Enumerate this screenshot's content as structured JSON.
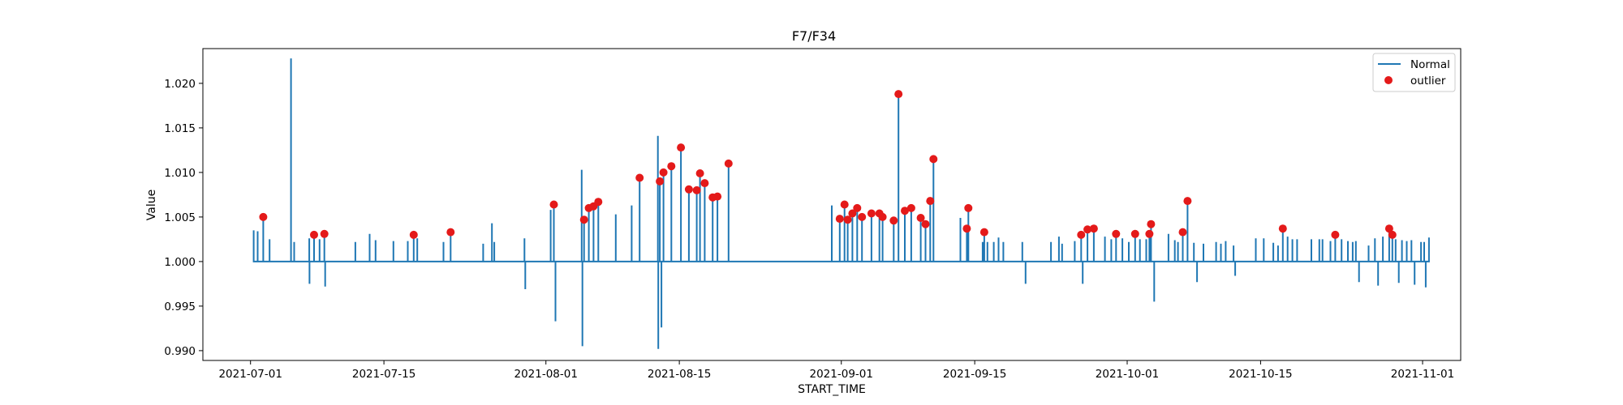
{
  "chart_data": {
    "type": "line",
    "title": "F7/F34",
    "xlabel": "START_TIME",
    "ylabel": "Value",
    "xlim": [
      "2021-06-26",
      "2021-11-05"
    ],
    "ylim": [
      0.9889,
      1.0239
    ],
    "x_ticks": [
      "2021-07-01",
      "2021-07-15",
      "2021-08-01",
      "2021-08-15",
      "2021-09-01",
      "2021-09-15",
      "2021-10-01",
      "2021-10-15",
      "2021-11-01"
    ],
    "y_ticks": [
      "0.990",
      "0.995",
      "1.000",
      "1.005",
      "1.010",
      "1.015",
      "1.020"
    ],
    "grid": false,
    "legend_position": "top-right",
    "series": [
      {
        "name": "Normal",
        "type": "line",
        "color": "#1f77b4",
        "baseline": 1.0,
        "spikes": [
          [
            "2021-07-01T08:00",
            1.0035
          ],
          [
            "2021-07-01T18:00",
            1.0034
          ],
          [
            "2021-07-02T08:00",
            1.005
          ],
          [
            "2021-07-03T00:00",
            1.0025
          ],
          [
            "2021-07-05T06:00",
            1.0228
          ],
          [
            "2021-07-05T14:00",
            1.0022
          ],
          [
            "2021-07-07T04:00",
            1.0026
          ],
          [
            "2021-07-07T04:30",
            0.9975
          ],
          [
            "2021-07-07T16:00",
            1.003
          ],
          [
            "2021-07-08T06:00",
            1.0025
          ],
          [
            "2021-07-08T18:00",
            1.0031
          ],
          [
            "2021-07-08T20:00",
            0.9972
          ],
          [
            "2021-07-12T00:00",
            1.0022
          ],
          [
            "2021-07-13T12:00",
            1.0031
          ],
          [
            "2021-07-14T03:00",
            1.0024
          ],
          [
            "2021-07-16T00:00",
            1.0023
          ],
          [
            "2021-07-17T12:00",
            1.0023
          ],
          [
            "2021-07-18T03:00",
            1.003
          ],
          [
            "2021-07-18T12:00",
            1.0026
          ],
          [
            "2021-07-21T06:00",
            1.0022
          ],
          [
            "2021-07-22T00:00",
            1.0033
          ],
          [
            "2021-07-25T10:00",
            1.002
          ],
          [
            "2021-07-26T08:00",
            1.0043
          ],
          [
            "2021-07-26T14:00",
            1.0022
          ],
          [
            "2021-07-29T18:00",
            1.0026
          ],
          [
            "2021-07-29T20:00",
            0.9969
          ],
          [
            "2021-08-01T12:00",
            1.0058
          ],
          [
            "2021-08-01T20:00",
            1.0064
          ],
          [
            "2021-08-02T00:00",
            0.9933
          ],
          [
            "2021-08-04T18:00",
            1.0103
          ],
          [
            "2021-08-04T20:00",
            0.9905
          ],
          [
            "2021-08-05T00:00",
            1.0047
          ],
          [
            "2021-08-05T12:00",
            1.006
          ],
          [
            "2021-08-06T00:00",
            1.0062
          ],
          [
            "2021-08-06T12:00",
            1.0067
          ],
          [
            "2021-08-08T08:00",
            1.0053
          ],
          [
            "2021-08-10T00:00",
            1.0063
          ],
          [
            "2021-08-10T20:00",
            1.0094
          ],
          [
            "2021-08-12T18:00",
            1.0141
          ],
          [
            "2021-08-12T19:00",
            0.9902
          ],
          [
            "2021-08-12T23:00",
            1.009
          ],
          [
            "2021-08-13T03:00",
            0.9926
          ],
          [
            "2021-08-13T08:00",
            1.01
          ],
          [
            "2021-08-14T04:00",
            1.0107
          ],
          [
            "2021-08-15T04:00",
            1.0128
          ],
          [
            "2021-08-16T00:00",
            1.0081
          ],
          [
            "2021-08-16T20:00",
            1.008
          ],
          [
            "2021-08-17T04:00",
            1.0099
          ],
          [
            "2021-08-17T16:00",
            1.0088
          ],
          [
            "2021-08-18T12:00",
            1.0072
          ],
          [
            "2021-08-19T00:00",
            1.0073
          ],
          [
            "2021-08-20T04:00",
            1.011
          ],
          [
            "2021-08-31T00:00",
            1.0063
          ],
          [
            "2021-08-31T20:00",
            1.0048
          ],
          [
            "2021-09-01T08:00",
            1.0064
          ],
          [
            "2021-09-01T16:00",
            1.0047
          ],
          [
            "2021-09-02T04:00",
            1.0054
          ],
          [
            "2021-09-02T16:00",
            1.006
          ],
          [
            "2021-09-03T04:00",
            1.005
          ],
          [
            "2021-09-04T04:00",
            1.0054
          ],
          [
            "2021-09-05T00:00",
            1.0054
          ],
          [
            "2021-09-05T08:00",
            1.005
          ],
          [
            "2021-09-06T12:00",
            1.0046
          ],
          [
            "2021-09-07T00:00",
            1.0188
          ],
          [
            "2021-09-07T16:00",
            1.0057
          ],
          [
            "2021-09-08T08:00",
            1.006
          ],
          [
            "2021-09-09T08:00",
            1.0049
          ],
          [
            "2021-09-09T20:00",
            1.0042
          ],
          [
            "2021-09-10T08:00",
            1.0068
          ],
          [
            "2021-09-10T16:00",
            1.0115
          ],
          [
            "2021-09-13T12:00",
            1.0049
          ],
          [
            "2021-09-14T04:00",
            1.0037
          ],
          [
            "2021-09-14T08:00",
            1.006
          ],
          [
            "2021-09-15T20:00",
            1.0022
          ],
          [
            "2021-09-16T00:00",
            1.0033
          ],
          [
            "2021-09-16T08:00",
            1.0022
          ],
          [
            "2021-09-17T00:00",
            1.0022
          ],
          [
            "2021-09-17T12:00",
            1.0027
          ],
          [
            "2021-09-18T00:00",
            1.0022
          ],
          [
            "2021-09-20T00:00",
            1.0022
          ],
          [
            "2021-09-20T08:00",
            0.9975
          ],
          [
            "2021-09-23T00:00",
            1.0022
          ],
          [
            "2021-09-23T20:00",
            1.0028
          ],
          [
            "2021-09-24T04:00",
            1.002
          ],
          [
            "2021-09-25T12:00",
            1.0023
          ],
          [
            "2021-09-26T04:00",
            1.003
          ],
          [
            "2021-09-26T08:00",
            0.9975
          ],
          [
            "2021-09-26T20:00",
            1.0036
          ],
          [
            "2021-09-27T12:00",
            1.0037
          ],
          [
            "2021-09-28T16:00",
            1.0028
          ],
          [
            "2021-09-29T08:00",
            1.0025
          ],
          [
            "2021-09-29T20:00",
            1.0031
          ],
          [
            "2021-09-30T12:00",
            1.0026
          ],
          [
            "2021-10-01T04:00",
            1.0022
          ],
          [
            "2021-10-01T20:00",
            1.0031
          ],
          [
            "2021-10-02T08:00",
            1.0025
          ],
          [
            "2021-10-03T00:00",
            1.0025
          ],
          [
            "2021-10-03T08:00",
            1.0031
          ],
          [
            "2021-10-03T12:00",
            1.0042
          ],
          [
            "2021-10-03T20:00",
            0.9955
          ],
          [
            "2021-10-05T08:00",
            1.0031
          ],
          [
            "2021-10-06T00:00",
            1.0024
          ],
          [
            "2021-10-06T08:00",
            1.0022
          ],
          [
            "2021-10-06T20:00",
            1.0033
          ],
          [
            "2021-10-07T08:00",
            1.0068
          ],
          [
            "2021-10-08T00:00",
            1.0021
          ],
          [
            "2021-10-08T08:00",
            0.9977
          ],
          [
            "2021-10-09T00:00",
            1.002
          ],
          [
            "2021-10-10T08:00",
            1.0022
          ],
          [
            "2021-10-10T20:00",
            1.002
          ],
          [
            "2021-10-11T08:00",
            1.0023
          ],
          [
            "2021-10-12T04:00",
            1.0018
          ],
          [
            "2021-10-12T08:00",
            0.9984
          ],
          [
            "2021-10-14T12:00",
            1.0026
          ],
          [
            "2021-10-15T08:00",
            1.0026
          ],
          [
            "2021-10-16T08:00",
            1.0021
          ],
          [
            "2021-10-16T20:00",
            1.0018
          ],
          [
            "2021-10-17T08:00",
            1.0037
          ],
          [
            "2021-10-17T20:00",
            1.0028
          ],
          [
            "2021-10-18T08:00",
            1.0025
          ],
          [
            "2021-10-18T20:00",
            1.0025
          ],
          [
            "2021-10-20T08:00",
            1.0025
          ],
          [
            "2021-10-21T04:00",
            1.0025
          ],
          [
            "2021-10-21T12:00",
            1.0025
          ],
          [
            "2021-10-22T08:00",
            1.0023
          ],
          [
            "2021-10-22T20:00",
            1.003
          ],
          [
            "2021-10-23T12:00",
            1.0025
          ],
          [
            "2021-10-24T04:00",
            1.0023
          ],
          [
            "2021-10-24T16:00",
            1.0022
          ],
          [
            "2021-10-25T00:00",
            1.0023
          ],
          [
            "2021-10-25T08:00",
            0.9977
          ],
          [
            "2021-10-26T08:00",
            1.0018
          ],
          [
            "2021-10-27T00:00",
            1.0026
          ],
          [
            "2021-10-27T08:00",
            0.9973
          ],
          [
            "2021-10-27T20:00",
            1.0028
          ],
          [
            "2021-10-28T12:00",
            1.0037
          ],
          [
            "2021-10-28T20:00",
            1.003
          ],
          [
            "2021-10-29T04:00",
            1.0025
          ],
          [
            "2021-10-29T12:00",
            0.9976
          ],
          [
            "2021-10-29T20:00",
            1.0024
          ],
          [
            "2021-10-30T08:00",
            1.0023
          ],
          [
            "2021-10-30T20:00",
            1.0024
          ],
          [
            "2021-10-31T04:00",
            0.9974
          ],
          [
            "2021-10-31T20:00",
            1.0022
          ],
          [
            "2021-11-01T04:00",
            1.0022
          ],
          [
            "2021-11-01T08:00",
            0.9971
          ],
          [
            "2021-11-01T16:00",
            1.0027
          ]
        ]
      },
      {
        "name": "outlier",
        "type": "scatter",
        "color": "#e41a1a",
        "points": [
          [
            "2021-07-02T08:00",
            1.005
          ],
          [
            "2021-07-07T16:00",
            1.003
          ],
          [
            "2021-07-08T18:00",
            1.0031
          ],
          [
            "2021-07-18T03:00",
            1.003
          ],
          [
            "2021-07-22T00:00",
            1.0033
          ],
          [
            "2021-08-01T20:00",
            1.0064
          ],
          [
            "2021-08-05T00:00",
            1.0047
          ],
          [
            "2021-08-05T12:00",
            1.006
          ],
          [
            "2021-08-06T00:00",
            1.0062
          ],
          [
            "2021-08-06T12:00",
            1.0067
          ],
          [
            "2021-08-10T20:00",
            1.0094
          ],
          [
            "2021-08-12T23:00",
            1.009
          ],
          [
            "2021-08-13T08:00",
            1.01
          ],
          [
            "2021-08-14T04:00",
            1.0107
          ],
          [
            "2021-08-15T04:00",
            1.0128
          ],
          [
            "2021-08-16T00:00",
            1.0081
          ],
          [
            "2021-08-16T20:00",
            1.008
          ],
          [
            "2021-08-17T04:00",
            1.0099
          ],
          [
            "2021-08-17T16:00",
            1.0088
          ],
          [
            "2021-08-18T12:00",
            1.0072
          ],
          [
            "2021-08-19T00:00",
            1.0073
          ],
          [
            "2021-08-20T04:00",
            1.011
          ],
          [
            "2021-08-31T20:00",
            1.0048
          ],
          [
            "2021-09-01T08:00",
            1.0064
          ],
          [
            "2021-09-01T16:00",
            1.0047
          ],
          [
            "2021-09-02T04:00",
            1.0054
          ],
          [
            "2021-09-02T16:00",
            1.006
          ],
          [
            "2021-09-03T04:00",
            1.005
          ],
          [
            "2021-09-04T04:00",
            1.0054
          ],
          [
            "2021-09-05T00:00",
            1.0054
          ],
          [
            "2021-09-05T08:00",
            1.005
          ],
          [
            "2021-09-06T12:00",
            1.0046
          ],
          [
            "2021-09-07T00:00",
            1.0188
          ],
          [
            "2021-09-07T16:00",
            1.0057
          ],
          [
            "2021-09-08T08:00",
            1.006
          ],
          [
            "2021-09-09T08:00",
            1.0049
          ],
          [
            "2021-09-09T20:00",
            1.0042
          ],
          [
            "2021-09-10T08:00",
            1.0068
          ],
          [
            "2021-09-10T16:00",
            1.0115
          ],
          [
            "2021-09-14T04:00",
            1.0037
          ],
          [
            "2021-09-14T08:00",
            1.006
          ],
          [
            "2021-09-16T00:00",
            1.0033
          ],
          [
            "2021-09-26T04:00",
            1.003
          ],
          [
            "2021-09-26T20:00",
            1.0036
          ],
          [
            "2021-09-27T12:00",
            1.0037
          ],
          [
            "2021-09-29T20:00",
            1.0031
          ],
          [
            "2021-10-01T20:00",
            1.0031
          ],
          [
            "2021-10-03T08:00",
            1.0031
          ],
          [
            "2021-10-03T12:00",
            1.0042
          ],
          [
            "2021-10-06T20:00",
            1.0033
          ],
          [
            "2021-10-07T08:00",
            1.0068
          ],
          [
            "2021-10-17T08:00",
            1.0037
          ],
          [
            "2021-10-22T20:00",
            1.003
          ],
          [
            "2021-10-28T12:00",
            1.0037
          ],
          [
            "2021-10-28T20:00",
            1.003
          ]
        ]
      }
    ]
  }
}
